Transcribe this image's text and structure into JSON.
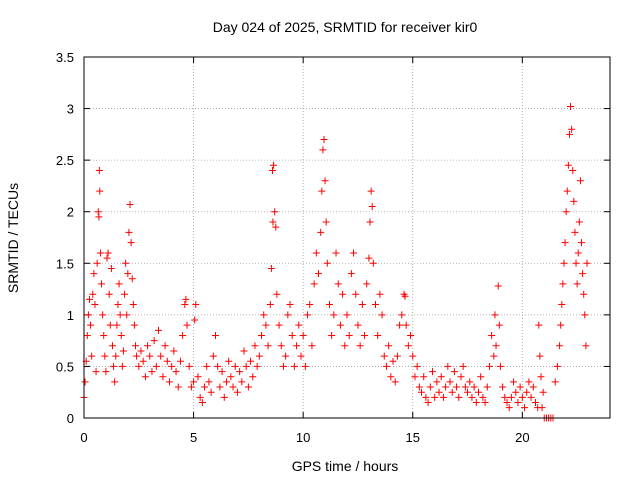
{
  "chart_data": {
    "type": "scatter",
    "title": "Day 024 of 2025, SRMTID for receiver kir0",
    "xlabel": "GPS time / hours",
    "ylabel": "SRMTID / TECUs",
    "xlim": [
      0,
      24
    ],
    "ylim": [
      0,
      3.5
    ],
    "xticks": [
      0,
      5,
      10,
      15,
      20
    ],
    "xtick_labels": [
      "0",
      "5",
      "10",
      "15",
      "20"
    ],
    "yticks": [
      0,
      0.5,
      1,
      1.5,
      2,
      2.5,
      3,
      3.5
    ],
    "ytick_labels": [
      "0",
      "0.5",
      "1",
      "1.5",
      "2",
      "2.5",
      "3",
      "3.5"
    ],
    "grid": true,
    "series": [
      {
        "name": "SRMTID",
        "marker": "+",
        "color": "#ff0000",
        "points": [
          [
            0.0,
            0.2
          ],
          [
            0.05,
            0.35
          ],
          [
            0.1,
            0.55
          ],
          [
            0.15,
            0.8
          ],
          [
            0.2,
            1.0
          ],
          [
            0.25,
            1.15
          ],
          [
            0.3,
            0.9
          ],
          [
            0.35,
            0.6
          ],
          [
            0.4,
            1.2
          ],
          [
            0.45,
            1.4
          ],
          [
            0.5,
            1.1
          ],
          [
            0.55,
            0.45
          ],
          [
            0.6,
            1.5
          ],
          [
            0.65,
            2.0
          ],
          [
            0.68,
            1.95
          ],
          [
            0.7,
            2.4
          ],
          [
            0.72,
            2.2
          ],
          [
            0.75,
            1.6
          ],
          [
            0.8,
            1.3
          ],
          [
            0.85,
            1.0
          ],
          [
            0.9,
            0.8
          ],
          [
            0.95,
            0.6
          ],
          [
            1.0,
            0.45
          ],
          [
            1.05,
            1.55
          ],
          [
            1.1,
            1.6
          ],
          [
            1.15,
            1.2
          ],
          [
            1.2,
            0.9
          ],
          [
            1.25,
            1.45
          ],
          [
            1.3,
            0.7
          ],
          [
            1.35,
            0.5
          ],
          [
            1.4,
            0.35
          ],
          [
            1.45,
            0.6
          ],
          [
            1.5,
            0.9
          ],
          [
            1.55,
            1.1
          ],
          [
            1.6,
            1.3
          ],
          [
            1.65,
            1.0
          ],
          [
            1.7,
            0.8
          ],
          [
            1.75,
            0.5
          ],
          [
            1.8,
            0.65
          ],
          [
            1.85,
            1.2
          ],
          [
            1.9,
            1.5
          ],
          [
            1.95,
            1.0
          ],
          [
            2.0,
            1.4
          ],
          [
            2.05,
            1.8
          ],
          [
            2.1,
            2.07
          ],
          [
            2.15,
            1.7
          ],
          [
            2.2,
            1.35
          ],
          [
            2.25,
            1.1
          ],
          [
            2.3,
            0.9
          ],
          [
            2.35,
            0.7
          ],
          [
            2.4,
            0.6
          ],
          [
            2.5,
            0.5
          ],
          [
            2.6,
            0.65
          ],
          [
            2.7,
            0.55
          ],
          [
            2.8,
            0.4
          ],
          [
            2.9,
            0.7
          ],
          [
            3.0,
            0.6
          ],
          [
            3.1,
            0.45
          ],
          [
            3.2,
            0.75
          ],
          [
            3.3,
            0.5
          ],
          [
            3.4,
            0.85
          ],
          [
            3.5,
            0.6
          ],
          [
            3.6,
            0.4
          ],
          [
            3.7,
            0.7
          ],
          [
            3.8,
            0.55
          ],
          [
            3.9,
            0.35
          ],
          [
            4.0,
            0.5
          ],
          [
            4.1,
            0.65
          ],
          [
            4.2,
            0.45
          ],
          [
            4.3,
            0.3
          ],
          [
            4.4,
            0.55
          ],
          [
            4.5,
            0.8
          ],
          [
            4.6,
            1.1
          ],
          [
            4.65,
            1.15
          ],
          [
            4.7,
            0.9
          ],
          [
            4.8,
            0.5
          ],
          [
            4.9,
            0.3
          ],
          [
            5.0,
            0.35
          ],
          [
            5.05,
            0.95
          ],
          [
            5.1,
            1.1
          ],
          [
            5.2,
            0.4
          ],
          [
            5.3,
            0.2
          ],
          [
            5.4,
            0.15
          ],
          [
            5.5,
            0.3
          ],
          [
            5.6,
            0.5
          ],
          [
            5.7,
            0.35
          ],
          [
            5.8,
            0.25
          ],
          [
            5.9,
            0.6
          ],
          [
            6.0,
            0.8
          ],
          [
            6.1,
            0.5
          ],
          [
            6.2,
            0.3
          ],
          [
            6.3,
            0.45
          ],
          [
            6.4,
            0.2
          ],
          [
            6.5,
            0.35
          ],
          [
            6.6,
            0.55
          ],
          [
            6.7,
            0.4
          ],
          [
            6.8,
            0.3
          ],
          [
            6.9,
            0.5
          ],
          [
            7.0,
            0.25
          ],
          [
            7.1,
            0.45
          ],
          [
            7.2,
            0.35
          ],
          [
            7.3,
            0.65
          ],
          [
            7.4,
            0.5
          ],
          [
            7.5,
            0.3
          ],
          [
            7.6,
            0.55
          ],
          [
            7.7,
            0.4
          ],
          [
            7.8,
            0.7
          ],
          [
            7.9,
            0.5
          ],
          [
            8.0,
            0.6
          ],
          [
            8.1,
            0.8
          ],
          [
            8.2,
            1.0
          ],
          [
            8.3,
            0.9
          ],
          [
            8.4,
            0.7
          ],
          [
            8.5,
            1.1
          ],
          [
            8.55,
            1.45
          ],
          [
            8.6,
            2.4
          ],
          [
            8.62,
            1.9
          ],
          [
            8.65,
            2.45
          ],
          [
            8.7,
            2.0
          ],
          [
            8.75,
            1.85
          ],
          [
            8.8,
            1.2
          ],
          [
            8.9,
            0.9
          ],
          [
            9.0,
            0.7
          ],
          [
            9.1,
            0.5
          ],
          [
            9.2,
            0.6
          ],
          [
            9.3,
            1.0
          ],
          [
            9.4,
            1.1
          ],
          [
            9.5,
            0.8
          ],
          [
            9.6,
            0.5
          ],
          [
            9.7,
            0.7
          ],
          [
            9.8,
            0.9
          ],
          [
            9.9,
            0.6
          ],
          [
            10.0,
            0.8
          ],
          [
            10.1,
            0.5
          ],
          [
            10.2,
            1.0
          ],
          [
            10.3,
            1.1
          ],
          [
            10.4,
            0.7
          ],
          [
            10.5,
            1.3
          ],
          [
            10.6,
            1.6
          ],
          [
            10.7,
            1.4
          ],
          [
            10.8,
            1.8
          ],
          [
            10.85,
            2.2
          ],
          [
            10.9,
            2.6
          ],
          [
            10.95,
            2.7
          ],
          [
            11.0,
            2.3
          ],
          [
            11.05,
            1.9
          ],
          [
            11.1,
            1.5
          ],
          [
            11.2,
            1.1
          ],
          [
            11.3,
            0.8
          ],
          [
            11.4,
            1.0
          ],
          [
            11.5,
            1.6
          ],
          [
            11.6,
            1.3
          ],
          [
            11.7,
            0.9
          ],
          [
            11.8,
            1.2
          ],
          [
            11.9,
            0.7
          ],
          [
            12.0,
            1.0
          ],
          [
            12.1,
            0.8
          ],
          [
            12.2,
            1.4
          ],
          [
            12.3,
            1.6
          ],
          [
            12.4,
            1.2
          ],
          [
            12.5,
            0.9
          ],
          [
            12.6,
            0.7
          ],
          [
            12.7,
            1.1
          ],
          [
            12.8,
            0.8
          ],
          [
            12.9,
            1.3
          ],
          [
            13.0,
            1.55
          ],
          [
            13.05,
            1.9
          ],
          [
            13.1,
            2.2
          ],
          [
            13.15,
            2.05
          ],
          [
            13.2,
            1.5
          ],
          [
            13.3,
            1.1
          ],
          [
            13.4,
            0.8
          ],
          [
            13.5,
            1.2
          ],
          [
            13.6,
            1.0
          ],
          [
            13.7,
            0.6
          ],
          [
            13.8,
            0.5
          ],
          [
            13.9,
            0.7
          ],
          [
            14.0,
            0.4
          ],
          [
            14.1,
            0.55
          ],
          [
            14.2,
            0.35
          ],
          [
            14.3,
            0.6
          ],
          [
            14.4,
            0.9
          ],
          [
            14.5,
            1.0
          ],
          [
            14.6,
            1.2
          ],
          [
            14.65,
            1.18
          ],
          [
            14.7,
            0.9
          ],
          [
            14.8,
            0.7
          ],
          [
            14.9,
            0.8
          ],
          [
            15.0,
            0.6
          ],
          [
            15.1,
            0.4
          ],
          [
            15.2,
            0.5
          ],
          [
            15.3,
            0.3
          ],
          [
            15.4,
            0.25
          ],
          [
            15.5,
            0.4
          ],
          [
            15.6,
            0.2
          ],
          [
            15.7,
            0.15
          ],
          [
            15.8,
            0.3
          ],
          [
            15.9,
            0.45
          ],
          [
            16.0,
            0.2
          ],
          [
            16.1,
            0.35
          ],
          [
            16.2,
            0.25
          ],
          [
            16.3,
            0.4
          ],
          [
            16.4,
            0.2
          ],
          [
            16.5,
            0.3
          ],
          [
            16.6,
            0.5
          ],
          [
            16.7,
            0.35
          ],
          [
            16.8,
            0.25
          ],
          [
            16.9,
            0.45
          ],
          [
            17.0,
            0.3
          ],
          [
            17.1,
            0.2
          ],
          [
            17.2,
            0.4
          ],
          [
            17.3,
            0.5
          ],
          [
            17.4,
            0.3
          ],
          [
            17.5,
            0.25
          ],
          [
            17.6,
            0.35
          ],
          [
            17.7,
            0.2
          ],
          [
            17.8,
            0.3
          ],
          [
            17.9,
            0.15
          ],
          [
            18.0,
            0.25
          ],
          [
            18.1,
            0.4
          ],
          [
            18.2,
            0.2
          ],
          [
            18.3,
            0.15
          ],
          [
            18.4,
            0.3
          ],
          [
            18.5,
            0.5
          ],
          [
            18.6,
            0.8
          ],
          [
            18.7,
            0.6
          ],
          [
            18.75,
            1.0
          ],
          [
            18.8,
            0.7
          ],
          [
            18.9,
            1.28
          ],
          [
            18.95,
            0.9
          ],
          [
            19.0,
            0.5
          ],
          [
            19.1,
            0.3
          ],
          [
            19.2,
            0.2
          ],
          [
            19.3,
            0.15
          ],
          [
            19.4,
            0.1
          ],
          [
            19.5,
            0.2
          ],
          [
            19.6,
            0.35
          ],
          [
            19.7,
            0.25
          ],
          [
            19.8,
            0.15
          ],
          [
            19.9,
            0.3
          ],
          [
            20.0,
            0.2
          ],
          [
            20.1,
            0.1
          ],
          [
            20.2,
            0.25
          ],
          [
            20.3,
            0.35
          ],
          [
            20.4,
            0.2
          ],
          [
            20.5,
            0.3
          ],
          [
            20.6,
            0.15
          ],
          [
            20.7,
            0.1
          ],
          [
            20.75,
            0.9
          ],
          [
            20.8,
            0.6
          ],
          [
            20.85,
            0.4
          ],
          [
            20.9,
            0.1
          ],
          [
            20.95,
            0.25
          ],
          [
            21.0,
            0.0
          ],
          [
            21.1,
            0.0
          ],
          [
            21.2,
            0.0
          ],
          [
            21.3,
            0.0
          ],
          [
            21.4,
            0.0
          ],
          [
            21.5,
            0.35
          ],
          [
            21.6,
            0.5
          ],
          [
            21.7,
            0.7
          ],
          [
            21.75,
            0.9
          ],
          [
            21.8,
            1.1
          ],
          [
            21.85,
            1.3
          ],
          [
            21.9,
            1.5
          ],
          [
            21.95,
            1.7
          ],
          [
            22.0,
            2.0
          ],
          [
            22.05,
            2.2
          ],
          [
            22.1,
            2.45
          ],
          [
            22.15,
            2.75
          ],
          [
            22.2,
            3.02
          ],
          [
            22.25,
            2.8
          ],
          [
            22.3,
            2.4
          ],
          [
            22.35,
            2.1
          ],
          [
            22.4,
            1.8
          ],
          [
            22.45,
            1.5
          ],
          [
            22.5,
            1.3
          ],
          [
            22.55,
            1.6
          ],
          [
            22.6,
            1.9
          ],
          [
            22.65,
            2.3
          ],
          [
            22.7,
            1.7
          ],
          [
            22.75,
            1.4
          ],
          [
            22.8,
            1.2
          ],
          [
            22.85,
            1.0
          ],
          [
            22.9,
            0.7
          ],
          [
            22.95,
            1.5
          ]
        ]
      }
    ]
  }
}
